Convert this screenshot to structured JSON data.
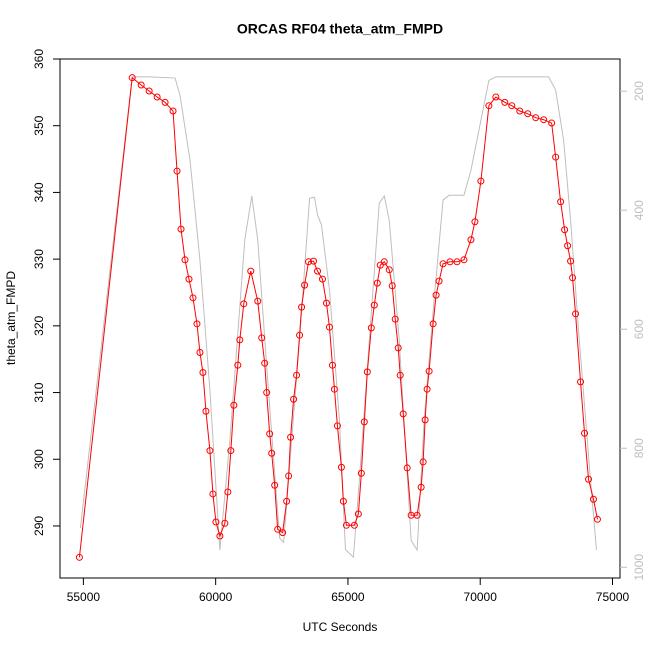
{
  "chart_data": {
    "type": "line",
    "title": "ORCAS RF04 theta_atm_FMPD",
    "xlabel": "UTC Seconds",
    "ylabel": "theta_atm_FMPD",
    "xlim": [
      54116,
      75284
    ],
    "xticks": [
      55000,
      60000,
      65000,
      70000,
      75000
    ],
    "ylim": [
      282.2,
      360
    ],
    "yticks": [
      290,
      300,
      310,
      320,
      330,
      340,
      350,
      360
    ],
    "y2lim": [
      1018,
      146
    ],
    "y2ticks": [
      200,
      400,
      600,
      800,
      1000
    ],
    "series": [
      {
        "color": "#bebebe",
        "axis": "y2",
        "markers": false,
        "x": [
          54887,
          56845,
          57523,
          58465,
          58653,
          59030,
          59406,
          59783,
          60159,
          60536,
          61101,
          61365,
          61591,
          61967,
          62419,
          62570,
          62871,
          63172,
          63549,
          63737,
          63850,
          64001,
          64302,
          64679,
          64905,
          65206,
          65432,
          65809,
          66185,
          66373,
          66562,
          66938,
          67390,
          67616,
          67880,
          68256,
          68595,
          68821,
          69386,
          69650,
          70026,
          70328,
          70591,
          72587,
          72851,
          73152,
          73416,
          73717,
          74169,
          74395
        ],
        "values": [
          934,
          176,
          176,
          178,
          207,
          316,
          484,
          703,
          971,
          787,
          450,
          376,
          450,
          686,
          951,
          958,
          787,
          618,
          380,
          378,
          408,
          425,
          534,
          753,
          970,
          983,
          854,
          618,
          388,
          376,
          417,
          618,
          955,
          971,
          753,
          551,
          383,
          375,
          375,
          333,
          249,
          182,
          176,
          176,
          198,
          282,
          417,
          602,
          854,
          971
        ]
      },
      {
        "color": "#ff0000",
        "markers": true,
        "x": [
          54850,
          56845,
          57184,
          57486,
          57787,
          58088,
          58389,
          58540,
          58691,
          58841,
          58992,
          59143,
          59293,
          59406,
          59519,
          59632,
          59783,
          59896,
          60009,
          60159,
          60348,
          60461,
          60574,
          60687,
          60837,
          60913,
          61063,
          61327,
          61591,
          61741,
          61854,
          61929,
          62042,
          62118,
          62231,
          62344,
          62532,
          62683,
          62758,
          62833,
          62946,
          63059,
          63172,
          63248,
          63361,
          63511,
          63699,
          63850,
          64038,
          64189,
          64302,
          64415,
          64490,
          64603,
          64754,
          64829,
          64942,
          65244,
          65394,
          65507,
          65620,
          65733,
          65884,
          65997,
          66110,
          66223,
          66373,
          66562,
          66675,
          66788,
          66901,
          66976,
          67089,
          67240,
          67390,
          67616,
          67767,
          67842,
          67917,
          67993,
          68068,
          68219,
          68332,
          68445,
          68595,
          68859,
          69123,
          69386,
          69650,
          69800,
          70026,
          70328,
          70591,
          70930,
          71194,
          71495,
          71796,
          72098,
          72399,
          72700,
          72851,
          73039,
          73190,
          73303,
          73416,
          73491,
          73604,
          73792,
          73943,
          74094,
          74282,
          74432
        ],
        "values": [
          285.3,
          357.2,
          356.1,
          355.2,
          354.3,
          353.5,
          352.2,
          343.2,
          334.5,
          329.9,
          327,
          324.2,
          320.3,
          316,
          313,
          307.2,
          301.3,
          294.8,
          290.6,
          288.5,
          290.4,
          295.1,
          301.3,
          308.1,
          314.1,
          317.9,
          323.3,
          328.2,
          323.7,
          318.2,
          314.4,
          310,
          303.8,
          300.9,
          296.1,
          289.5,
          289,
          293.7,
          297.5,
          303.3,
          309,
          312.6,
          318.6,
          322.8,
          326.1,
          329.6,
          329.7,
          328.2,
          327,
          323.4,
          319.8,
          314.1,
          310.5,
          305,
          298.8,
          293.7,
          290.1,
          290.1,
          291.8,
          297.9,
          305.6,
          313.1,
          319.7,
          323.1,
          326.4,
          329.1,
          329.6,
          328.4,
          326,
          321,
          316.7,
          312.6,
          306.8,
          298.7,
          291.6,
          291.6,
          295.8,
          299.6,
          305.9,
          310.5,
          313.2,
          320.3,
          324.6,
          326.7,
          329.3,
          329.6,
          329.6,
          329.9,
          332.9,
          335.6,
          341.7,
          353,
          354.3,
          353.5,
          353,
          352.2,
          351.8,
          351.2,
          350.9,
          350.4,
          345.3,
          338.6,
          334.4,
          332,
          329.7,
          327.2,
          321.8,
          311.6,
          303.9,
          297,
          294,
          291
        ]
      }
    ]
  }
}
